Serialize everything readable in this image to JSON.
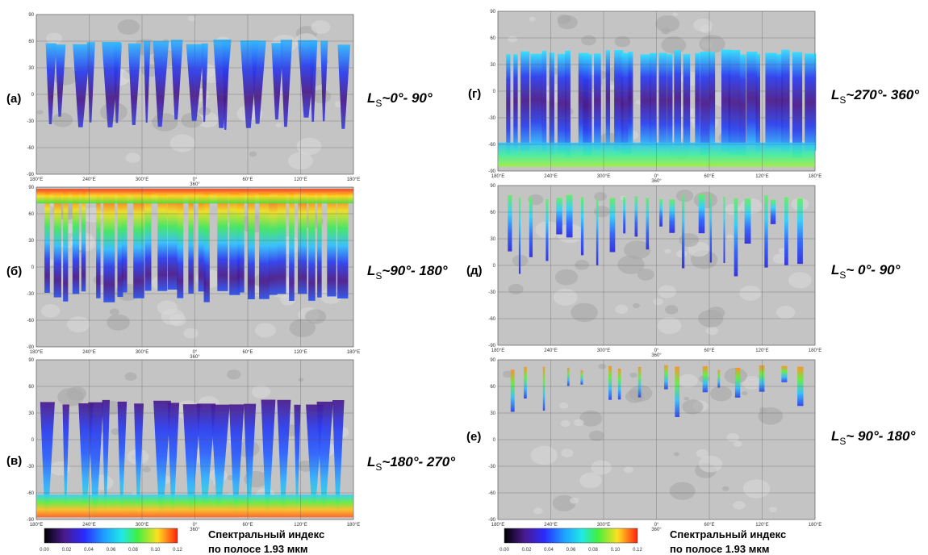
{
  "map_axes": {
    "lat_ticks": [
      "90",
      "60",
      "30",
      "0",
      "-30",
      "-60",
      "-90"
    ],
    "lon_ticks": [
      "180°E",
      "240°E",
      "300°E",
      "0°",
      "60°E",
      "120°E",
      "180°E"
    ],
    "lon_zero_alt": "360°"
  },
  "panels": [
    {
      "label": "(а)",
      "ls_symbol": "L",
      "ls_subscript": "S",
      "ls_range": "~0°- 90°"
    },
    {
      "label": "(б)",
      "ls_symbol": "L",
      "ls_subscript": "S",
      "ls_range": "~90°- 180°"
    },
    {
      "label": "(в)",
      "ls_symbol": "L",
      "ls_subscript": "S",
      "ls_range": "~180°- 270°"
    },
    {
      "label": "(г)",
      "ls_symbol": "L",
      "ls_subscript": "S",
      "ls_range": "~270°- 360°"
    },
    {
      "label": "(д)",
      "ls_symbol": "L",
      "ls_subscript": "S",
      "ls_range": "~ 0°- 90°"
    },
    {
      "label": "(е)",
      "ls_symbol": "L",
      "ls_subscript": "S",
      "ls_range": "~ 90°- 180°"
    }
  ],
  "colorbar": {
    "ticks": [
      "0.00",
      "0.02",
      "0.04",
      "0.06",
      "0.08",
      "0.10",
      "0.12"
    ],
    "caption_line1": "Спектральный индекс",
    "caption_line2": "по полосе 1.93 мкм"
  }
}
